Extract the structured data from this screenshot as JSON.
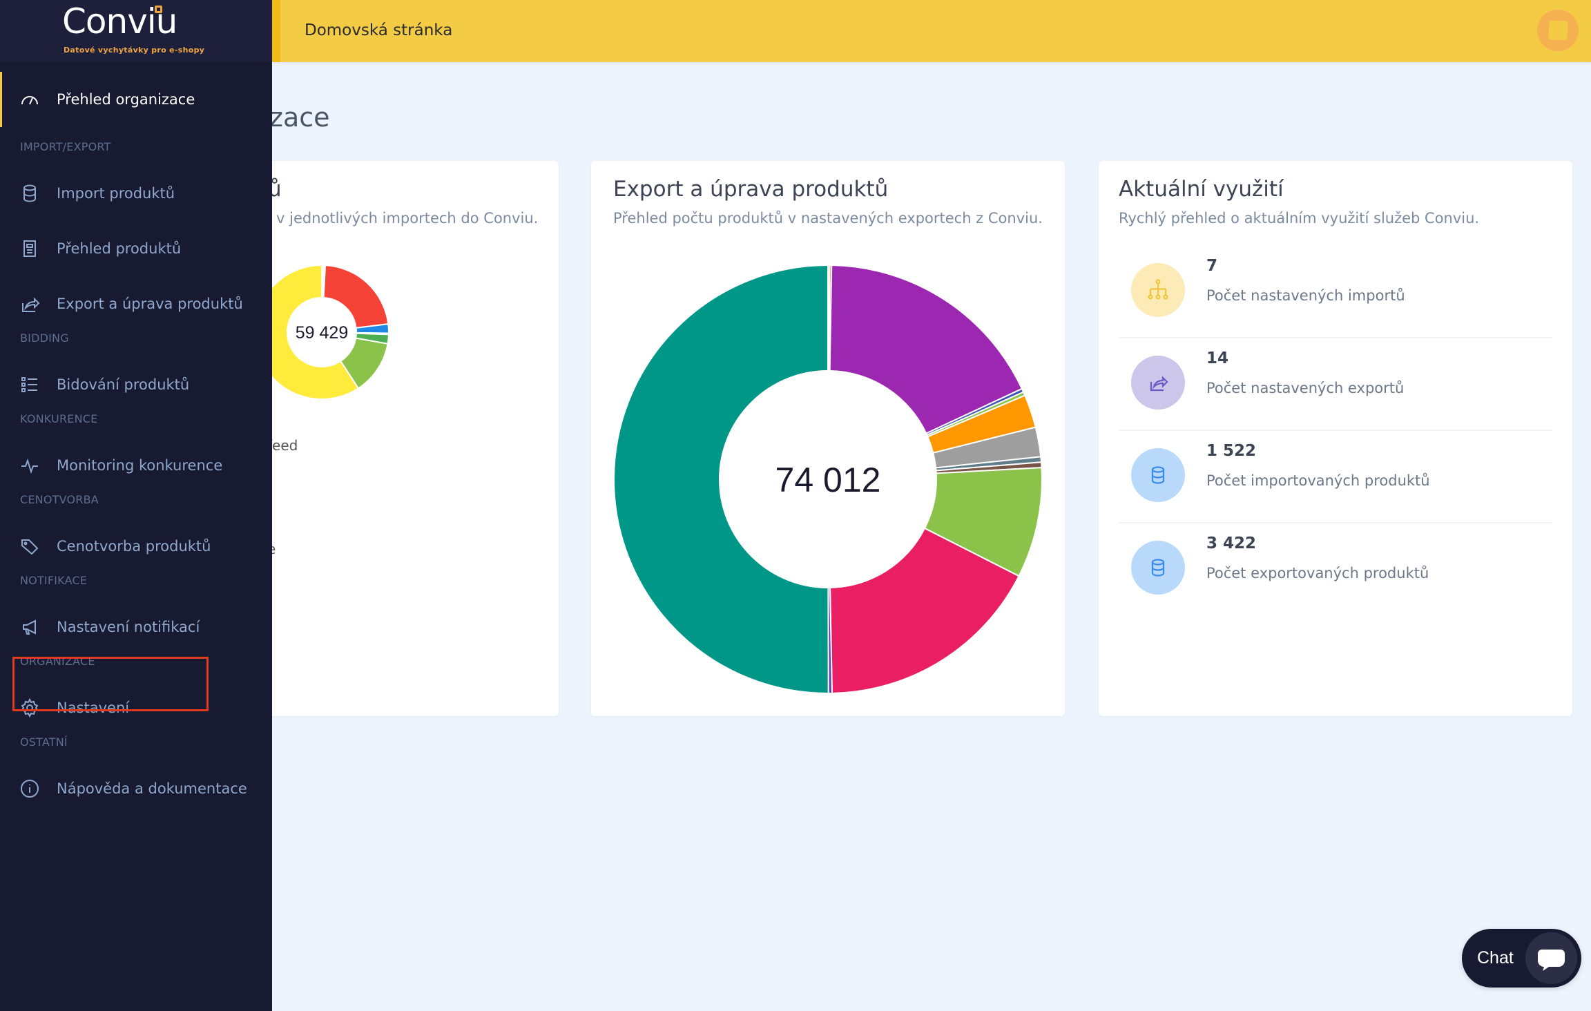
{
  "brand": {
    "name": "Conviu",
    "tagline": "Datové vychytávky pro e-shopy"
  },
  "header": {
    "title": "Domovská stránka",
    "avatar_color": "#f5b050"
  },
  "page_title": "zace",
  "sidebar": {
    "active": {
      "label": "Přehled organizace",
      "icon": "dashboard-gauge-icon"
    },
    "sections": [
      {
        "label": "IMPORT/EXPORT",
        "items": [
          {
            "label": "Import produktů",
            "icon": "database-icon"
          },
          {
            "label": "Přehled produktů",
            "icon": "document-icon"
          },
          {
            "label": "Export a úprava produktů",
            "icon": "share-icon"
          }
        ]
      },
      {
        "label": "BIDDING",
        "items": [
          {
            "label": "Bidování produktů",
            "icon": "list-icon"
          }
        ]
      },
      {
        "label": "KONKURENCE",
        "items": [
          {
            "label": "Monitoring konkurence",
            "icon": "pulse-icon"
          }
        ]
      },
      {
        "label": "CENOTVORBA",
        "items": [
          {
            "label": "Cenotvorba produktů",
            "icon": "tags-icon"
          }
        ]
      },
      {
        "label": "NOTIFIKACE",
        "items": [
          {
            "label": "Nastavení notifikací",
            "icon": "megaphone-icon"
          }
        ]
      },
      {
        "label": "ORGANIZACE",
        "items": [
          {
            "label": "Nastavení",
            "icon": "gear-icon"
          }
        ]
      },
      {
        "label": "OSTATNÍ",
        "items": [
          {
            "label": "Nápověda a dokumentace",
            "icon": "info-icon"
          }
        ]
      }
    ]
  },
  "import_card": {
    "title": "ů",
    "subtitle": "v jednotlivých importech do Conviu.",
    "legend": [
      "feed",
      "e"
    ]
  },
  "export_card": {
    "title": "Export a úprava produktů",
    "subtitle": "Přehled počtu produktů v nastavených exportech z Conviu."
  },
  "usage_card": {
    "title": "Aktuální využití",
    "subtitle": "Rychlý přehled o aktuálním využití služeb Conviu.",
    "items": [
      {
        "value": "7",
        "label": "Počet nastavených importů",
        "icon": "sitemap-icon",
        "bg": "#fcebb6",
        "fg": "#f0c53a"
      },
      {
        "value": "14",
        "label": "Počet nastavených exportů",
        "icon": "share-icon",
        "bg": "#cbc6ea",
        "fg": "#6a5ac5"
      },
      {
        "value": "1 522",
        "label": "Počet importovaných produktů",
        "icon": "database-icon",
        "bg": "#b9d9fb",
        "fg": "#3a8ae8"
      },
      {
        "value": "3 422",
        "label": "Počet exportovaných produktů",
        "icon": "database-icon",
        "bg": "#b9d9fb",
        "fg": "#3a8ae8"
      }
    ]
  },
  "chat": {
    "label": "Chat",
    "icon": "chat-bubble-icon"
  },
  "chart_data": [
    {
      "type": "pie",
      "donut": true,
      "center_label": "59 429",
      "values": [
        493,
        13206,
        1321,
        165,
        1321,
        7759,
        35164
      ],
      "colors": [
        "#ffffff",
        "#f44336",
        "#1e88e5",
        "#4fc3f7",
        "#4caf50",
        "#8bc34a",
        "#ffeb3b"
      ]
    },
    {
      "type": "pie",
      "donut": true,
      "center_label": "74 012",
      "values": [
        100,
        100,
        13160,
        200,
        200,
        1850,
        1650,
        300,
        300,
        6170,
        12750,
        200,
        37032
      ],
      "colors": [
        "#ffd54f",
        "#f44336",
        "#9c27b0",
        "#3f51b5",
        "#8bc34a",
        "#ff9800",
        "#9e9e9e",
        "#607d8b",
        "#795548",
        "#8bc34a",
        "#e91e63",
        "#673ab7",
        "#009688"
      ]
    }
  ]
}
